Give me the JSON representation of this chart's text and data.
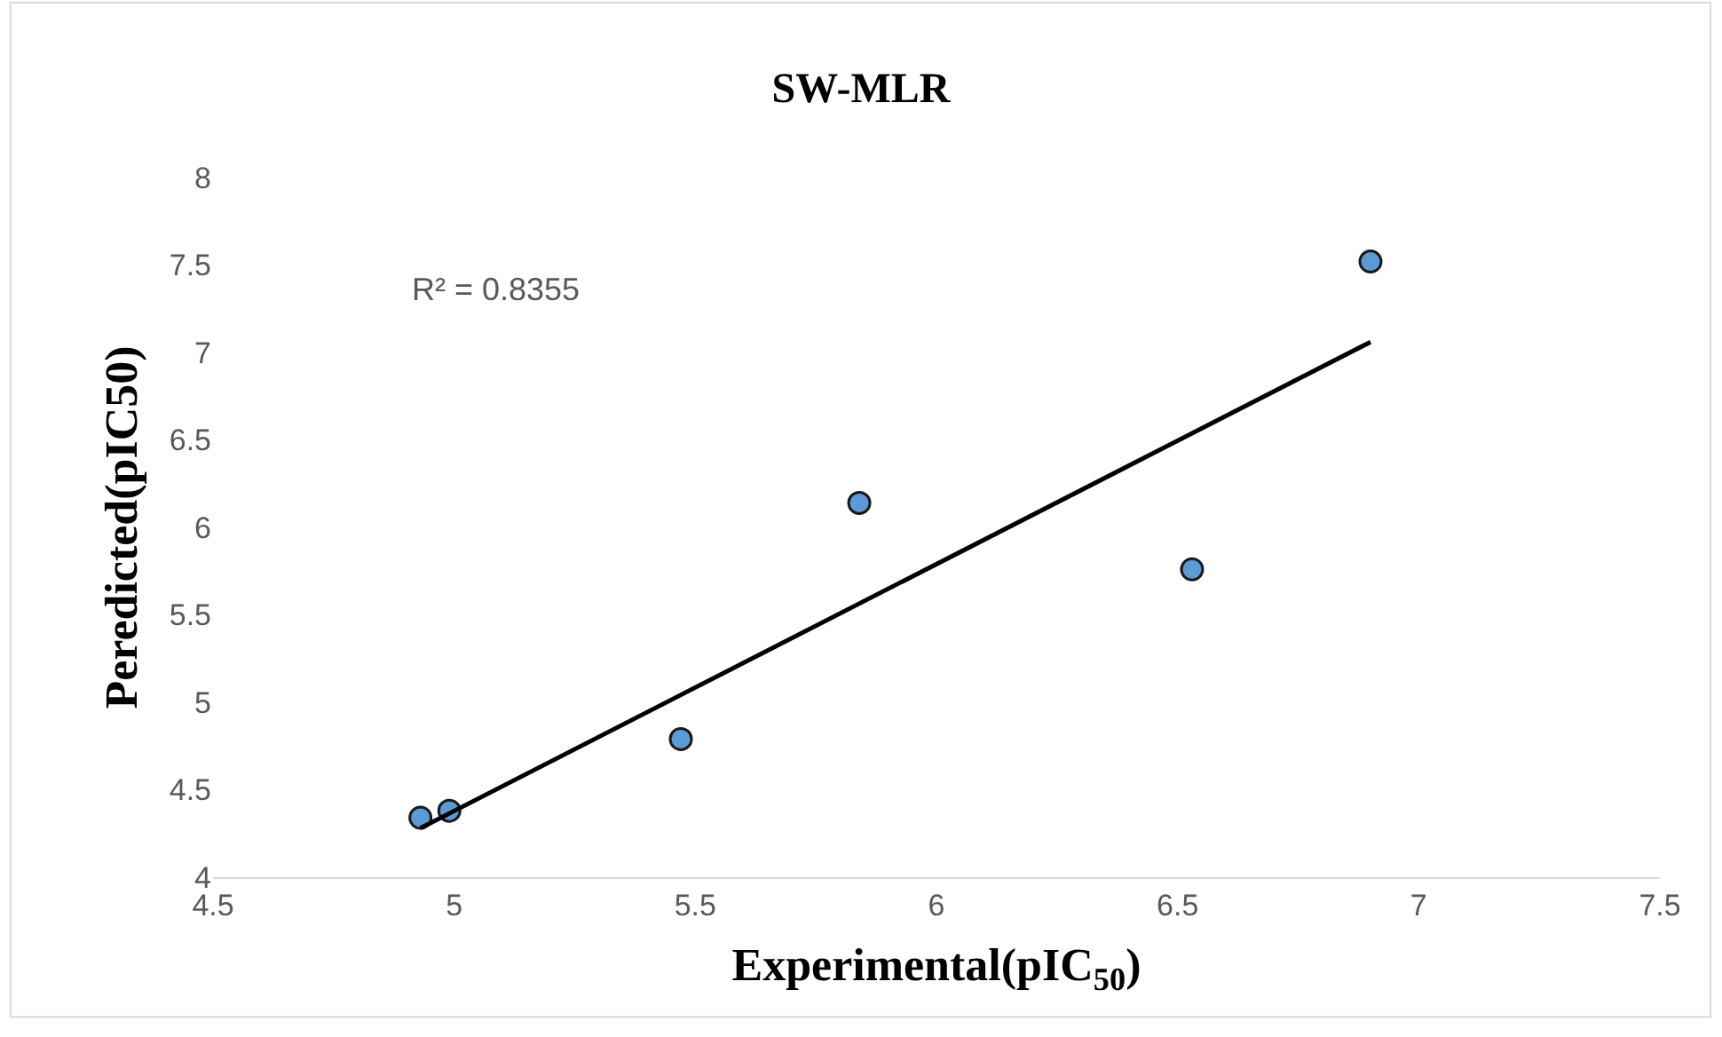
{
  "chart_data": {
    "type": "scatter",
    "title": "SW-MLR",
    "xlabel": "Experimental(pIC$_{50}$)",
    "ylabel": "Peredicted(pIC50)",
    "series": [
      {
        "marker": "circle",
        "color": "#5b9bd5",
        "x": [
          4.93,
          4.99,
          5.47,
          5.84,
          6.53,
          6.9
        ],
        "values": [
          4.34,
          4.38,
          4.79,
          6.14,
          5.76,
          7.52
        ]
      },
      {
        "type": "line",
        "color": "#000000",
        "x": [
          4.93,
          6.9
        ],
        "values": [
          4.28,
          7.06
        ]
      }
    ],
    "annotations": [
      "R² = 0.8355"
    ],
    "xlim": [
      4.5,
      7.5
    ],
    "xticks": [
      4.5,
      5,
      5.5,
      6,
      6.5,
      7,
      7.5
    ],
    "ylim": [
      4,
      8
    ],
    "yticks": [
      4,
      4.5,
      5,
      5.5,
      6,
      6.5,
      7,
      7.5,
      8
    ]
  }
}
